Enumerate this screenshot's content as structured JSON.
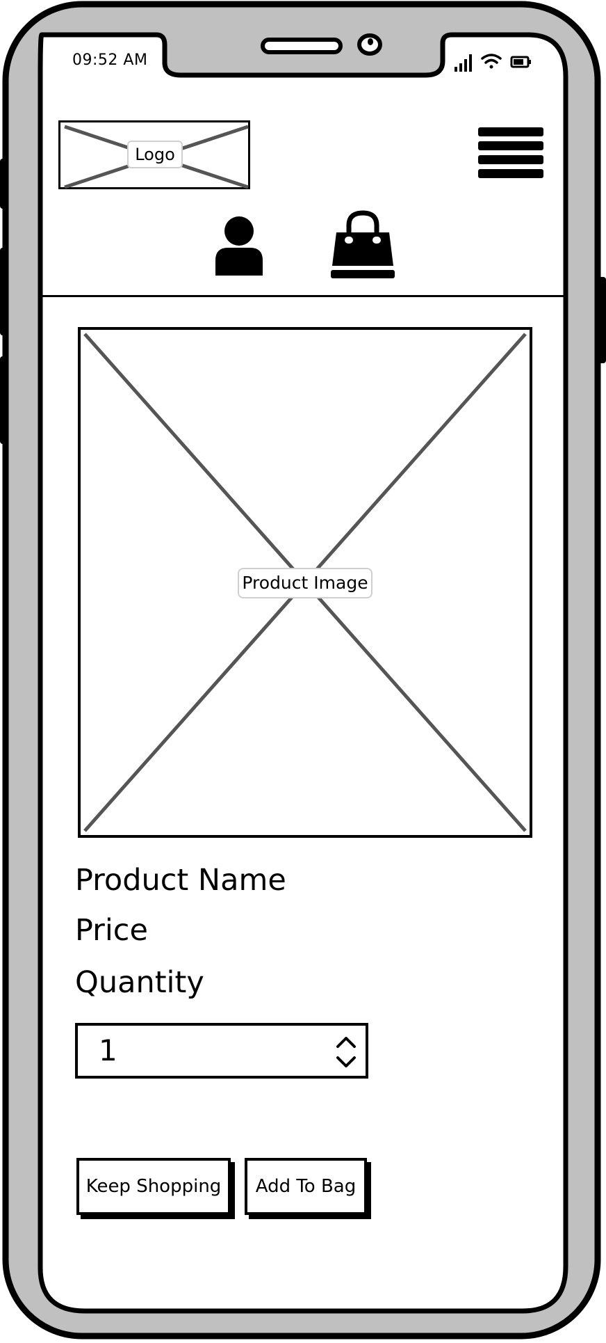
{
  "status_bar": {
    "time": "09:52 AM",
    "icons": [
      "signal-icon",
      "wifi-icon",
      "battery-icon"
    ]
  },
  "header": {
    "logo_label": "Logo",
    "menu_icon": "hamburger-menu-icon",
    "account_icon": "user-account-icon",
    "bag_icon": "shopping-bag-icon"
  },
  "product": {
    "image_label": "Product Image",
    "name": "Product Name",
    "price": "Price",
    "quantity_label": "Quantity",
    "quantity_value": "1"
  },
  "actions": {
    "keep_shopping": "Keep Shopping",
    "add_to_bag": "Add To Bag"
  },
  "colors": {
    "frame": "#c0c0c0",
    "ink": "#000000",
    "placeholder_cross": "#555555"
  }
}
